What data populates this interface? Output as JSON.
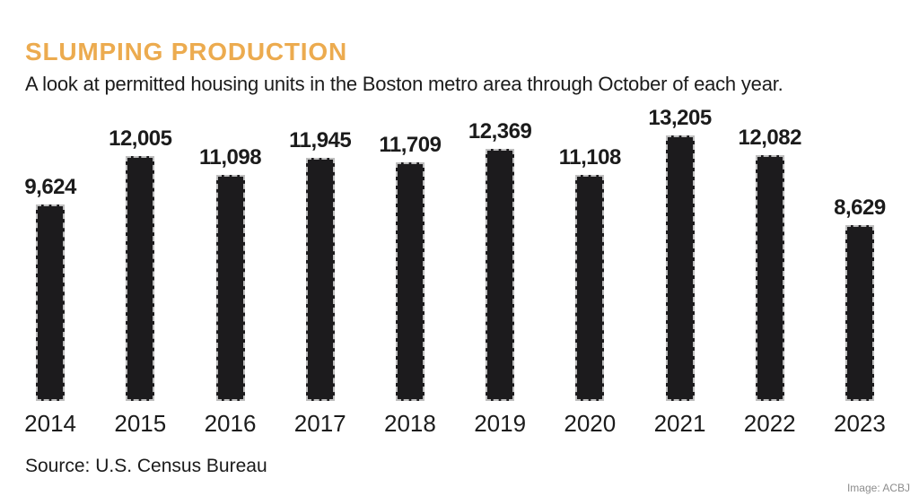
{
  "header": {
    "title": "SLUMPING PRODUCTION",
    "subtitle": "A look at permitted housing units in the Boston metro area through October of each year."
  },
  "footer": {
    "source": "Source: U.S. Census Bureau",
    "credit": "Image: ACBJ"
  },
  "colors": {
    "accent": "#ECAB4F",
    "bar": "#1C1B1D",
    "bar_border": "#BDBDBD",
    "text": "#1B1B1B",
    "credit": "#8C8C8C"
  },
  "chart_data": {
    "type": "bar",
    "title": "SLUMPING PRODUCTION",
    "subtitle": "A look at permitted housing units in the Boston metro area through October of each year.",
    "categories": [
      "2014",
      "2015",
      "2016",
      "2017",
      "2018",
      "2019",
      "2020",
      "2021",
      "2022",
      "2023"
    ],
    "values": [
      9624,
      12005,
      11098,
      11945,
      11709,
      12369,
      11108,
      13205,
      12082,
      8629
    ],
    "value_labels": [
      "9,624",
      "12,005",
      "11,098",
      "11,945",
      "11,709",
      "12,369",
      "11,108",
      "13,205",
      "12,082",
      "8,629"
    ],
    "xlabel": "",
    "ylabel": "",
    "ylim": [
      0,
      13205
    ],
    "grid": false,
    "legend": "none",
    "data_labels": "above-bars",
    "source": "Source: U.S. Census Bureau"
  }
}
